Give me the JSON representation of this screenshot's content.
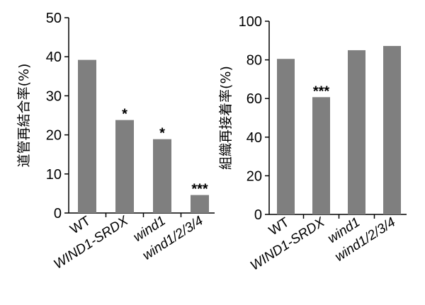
{
  "chart_data": [
    {
      "type": "bar",
      "categories": [
        "WT",
        "WIND1-SRDX",
        "wind1",
        "wind1/2/3/4"
      ],
      "italic_categories": [
        false,
        true,
        true,
        true
      ],
      "values": [
        39.2,
        23.8,
        18.9,
        4.6
      ],
      "significance": [
        "",
        "*",
        "*",
        "***"
      ],
      "ylabel": "道管再結合率(%)",
      "ylim": [
        0,
        50
      ],
      "yticks": [
        0,
        10,
        20,
        30,
        40,
        50
      ],
      "bar_color": "#7f7f7f",
      "grid": false
    },
    {
      "type": "bar",
      "categories": [
        "WT",
        "WIND1-SRDX",
        "wind1",
        "wind1/2/3/4"
      ],
      "italic_categories": [
        false,
        true,
        true,
        true
      ],
      "values": [
        80.5,
        60.7,
        85.0,
        87.2
      ],
      "significance": [
        "",
        "***",
        "",
        ""
      ],
      "ylabel": "組織再接着率(%)",
      "ylim": [
        0,
        100
      ],
      "yticks": [
        0,
        20,
        40,
        60,
        80,
        100
      ],
      "bar_color": "#7f7f7f",
      "grid": false
    }
  ]
}
